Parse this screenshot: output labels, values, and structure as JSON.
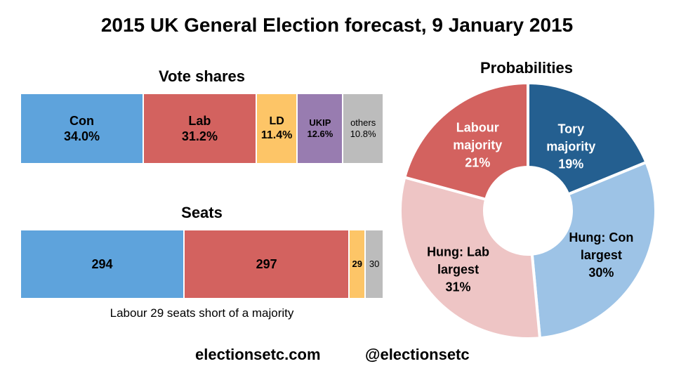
{
  "title": "2015 UK General Election forecast, 9 January 2015",
  "footer": {
    "website": "electionsetc.com",
    "twitter": "@electionsetc"
  },
  "seats_note": "Labour 29 seats short of a majority",
  "colors": {
    "con": "#5ea3dc",
    "lab": "#d3625f",
    "ld": "#fdc567",
    "ukip": "#987cb0",
    "others": "#bcbcbc",
    "tory_majority": "#245f90",
    "hung_con": "#9dc3e6",
    "hung_lab": "#eec5c5",
    "labour_majority": "#d3625f"
  },
  "chart_data": [
    {
      "type": "bar",
      "title": "Vote shares",
      "orientation": "horizontal-stacked",
      "total": 100,
      "segments": [
        {
          "key": "con",
          "name": "Con",
          "value": 34.0,
          "label": "34.0%",
          "text_color": "#000000"
        },
        {
          "key": "lab",
          "name": "Lab",
          "value": 31.2,
          "label": "31.2%",
          "text_color": "#000000"
        },
        {
          "key": "ld",
          "name": "LD",
          "value": 11.4,
          "label": "11.4%",
          "text_color": "#000000"
        },
        {
          "key": "ukip",
          "name": "UKIP",
          "value": 12.6,
          "label": "12.6%",
          "text_color": "#000000"
        },
        {
          "key": "others",
          "name": "others",
          "value": 10.8,
          "label": "10.8%",
          "text_color": "#000000"
        }
      ]
    },
    {
      "type": "bar",
      "title": "Seats",
      "orientation": "horizontal-stacked",
      "total": 650,
      "segments": [
        {
          "key": "con",
          "value": 294,
          "label": "294"
        },
        {
          "key": "lab",
          "value": 297,
          "label": "297"
        },
        {
          "key": "ld",
          "value": 29,
          "label": "29"
        },
        {
          "key": "others",
          "value": 30,
          "label": "30"
        }
      ]
    },
    {
      "type": "pie",
      "variant": "donut",
      "title": "Probabilities",
      "slices": [
        {
          "key": "tory_majority",
          "lines": [
            "Tory",
            "majority",
            "19%"
          ],
          "value": 19,
          "text_color": "#ffffff"
        },
        {
          "key": "hung_con",
          "lines": [
            "Hung: Con",
            "largest",
            "30%"
          ],
          "value": 30,
          "text_color": "#000000"
        },
        {
          "key": "hung_lab",
          "lines": [
            "Hung: Lab",
            "largest",
            "31%"
          ],
          "value": 31,
          "text_color": "#000000"
        },
        {
          "key": "labour_majority",
          "lines": [
            "Labour",
            "majority",
            "21%"
          ],
          "value": 21,
          "text_color": "#ffffff"
        }
      ]
    }
  ]
}
